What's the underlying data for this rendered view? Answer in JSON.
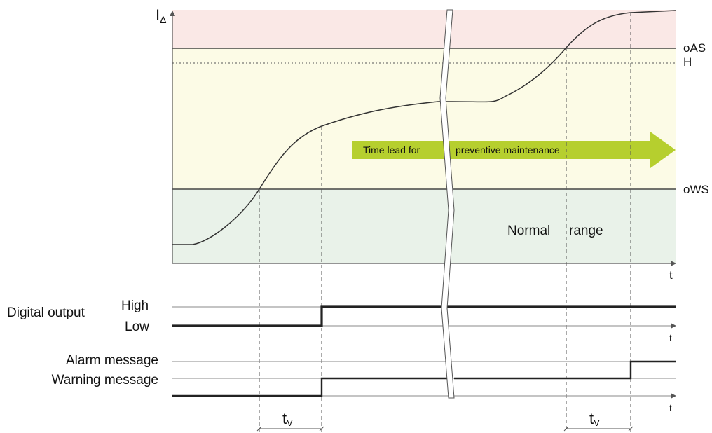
{
  "diagram": {
    "y_axis_label_main": "I",
    "y_axis_label_sub": "Δ",
    "time_axis_label": "t",
    "levels": {
      "oAS": "oAS",
      "H": "H",
      "oWS": "oWS"
    },
    "arrow_text_left": "Time lead for",
    "arrow_text_right": "preventive maintenance",
    "normal_range_part1": "Normal",
    "normal_range_part2": "range",
    "digital_output": {
      "title": "Digital output",
      "high": "High",
      "low": "Low"
    },
    "messages": {
      "alarm": "Alarm message",
      "warning": "Warning message"
    },
    "delay_label_main": "t",
    "delay_label_sub": "V"
  },
  "colors": {
    "alarm_zone": "#fae8e6",
    "warning_zone": "#fcfbe6",
    "normal_zone": "#e9f2e9",
    "arrow": "#b6cf2e",
    "curve": "#333333",
    "axis": "#555555",
    "line": "#444444"
  }
}
